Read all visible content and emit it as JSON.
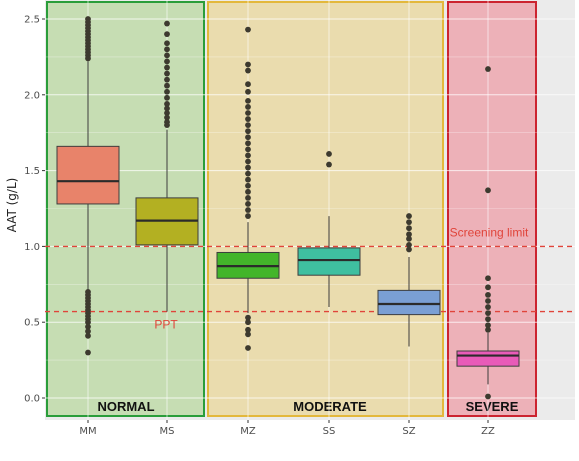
{
  "chart_data": {
    "type": "boxplot",
    "ylabel": "AAT (g/L)",
    "ylim": [
      -0.04,
      2.54
    ],
    "yticks": [
      0.0,
      0.5,
      1.0,
      1.5,
      2.0,
      2.5
    ],
    "ytick_labels": [
      "0.0",
      "0.5",
      "1.0",
      "1.5",
      "2.0",
      "2.5"
    ],
    "categories": [
      "MM",
      "MS",
      "MZ",
      "SS",
      "SZ",
      "ZZ"
    ],
    "series": [
      {
        "category": "MM",
        "color": "#e8836a",
        "q1": 1.28,
        "median": 1.43,
        "q3": 1.66,
        "whisker_low": 0.71,
        "whisker_high": 2.22,
        "outliers": [
          2.5,
          2.48,
          2.46,
          2.44,
          2.42,
          2.4,
          2.38,
          2.36,
          2.34,
          2.32,
          2.3,
          2.28,
          2.26,
          2.24,
          0.7,
          0.68,
          0.66,
          0.64,
          0.62,
          0.6,
          0.58,
          0.56,
          0.54,
          0.52,
          0.5,
          0.47,
          0.44,
          0.41,
          0.3
        ]
      },
      {
        "category": "MS",
        "color": "#b3b022",
        "q1": 1.01,
        "median": 1.17,
        "q3": 1.32,
        "whisker_low": 0.57,
        "whisker_high": 1.77,
        "outliers": [
          2.47,
          2.4,
          2.34,
          2.3,
          2.26,
          2.22,
          2.18,
          2.14,
          2.1,
          2.06,
          2.02,
          1.98,
          1.94,
          1.91,
          1.88,
          1.85,
          1.82,
          1.8
        ]
      },
      {
        "category": "MZ",
        "color": "#43b52a",
        "q1": 0.79,
        "median": 0.87,
        "q3": 0.96,
        "whisker_low": 0.56,
        "whisker_high": 1.16,
        "outliers": [
          2.43,
          2.2,
          2.16,
          2.07,
          2.02,
          1.96,
          1.92,
          1.88,
          1.84,
          1.8,
          1.76,
          1.72,
          1.68,
          1.64,
          1.6,
          1.56,
          1.52,
          1.48,
          1.44,
          1.4,
          1.36,
          1.32,
          1.28,
          1.24,
          1.2,
          0.53,
          0.5,
          0.45,
          0.42,
          0.33
        ]
      },
      {
        "category": "SS",
        "color": "#3fbfa0",
        "q1": 0.81,
        "median": 0.91,
        "q3": 0.99,
        "whisker_low": 0.6,
        "whisker_high": 1.2,
        "outliers": [
          1.61,
          1.54
        ]
      },
      {
        "category": "SZ",
        "color": "#7a9fd4",
        "q1": 0.55,
        "median": 0.62,
        "q3": 0.71,
        "whisker_low": 0.34,
        "whisker_high": 0.93,
        "outliers": [
          1.2,
          1.16,
          1.12,
          1.08,
          1.05,
          1.01,
          0.98
        ]
      },
      {
        "category": "ZZ",
        "color": "#e85bb8",
        "q1": 0.21,
        "median": 0.28,
        "q3": 0.31,
        "whisker_low": 0.09,
        "whisker_high": 0.43,
        "outliers": [
          2.17,
          1.37,
          0.79,
          0.73,
          0.68,
          0.64,
          0.6,
          0.56,
          0.52,
          0.48,
          0.45,
          0.01
        ]
      }
    ],
    "reference_lines": [
      {
        "y": 1.0,
        "label": "Screening limit",
        "color": "#e0443a",
        "style": "dashed"
      },
      {
        "y": 0.57,
        "label": "PPT",
        "color": "#e0443a",
        "style": "dashed"
      }
    ],
    "groups": [
      {
        "label": "NORMAL",
        "categories": [
          "MM",
          "MS"
        ],
        "fill": "#c6ddb3",
        "border": "#2a9d3a"
      },
      {
        "label": "MODERATE",
        "categories": [
          "MZ",
          "SS",
          "SZ"
        ],
        "fill": "#eadcae",
        "border": "#e3b83c"
      },
      {
        "label": "SEVERE",
        "categories": [
          "ZZ"
        ],
        "fill": "#edb1b8",
        "border": "#cc2430"
      }
    ],
    "grid": true,
    "legend": "none"
  }
}
